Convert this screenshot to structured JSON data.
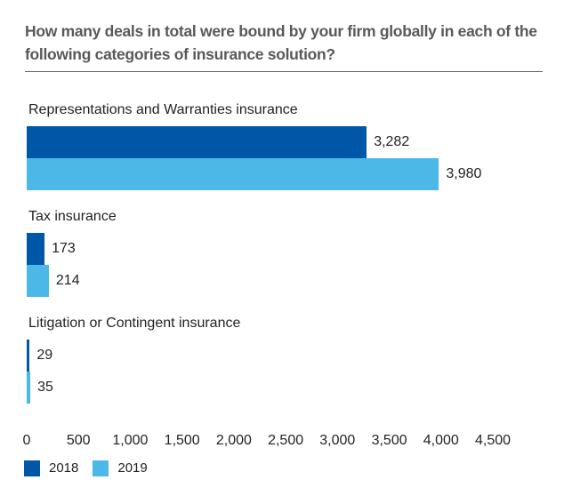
{
  "page": {
    "background": "#FFFFFF",
    "title_color": "#58595B",
    "divider_color": "#6D6E71",
    "text_color": "#231F20"
  },
  "chart_data": {
    "type": "bar",
    "orientation": "horizontal",
    "title": "How many deals in total were bound by your firm globally in each of the following categories of insurance solution?",
    "categories": [
      "Representations and Warranties insurance",
      "Tax insurance",
      "Litigation or Contingent insurance"
    ],
    "series": [
      {
        "name": "2018",
        "color": "#0057A8",
        "values": [
          3282,
          173,
          29
        ],
        "value_labels": [
          "3,282",
          "173",
          "29"
        ]
      },
      {
        "name": "2019",
        "color": "#4BB8E8",
        "values": [
          3980,
          214,
          35
        ],
        "value_labels": [
          "3,980",
          "214",
          "35"
        ]
      }
    ],
    "x_axis": {
      "min": 0,
      "max": 4500,
      "tick_step": 500,
      "ticks": [
        "0",
        "500",
        "1,000",
        "1,500",
        "2,000",
        "2,500",
        "3,000",
        "3,500",
        "4,000",
        "4,500"
      ]
    },
    "legend": {
      "position": "bottom-left",
      "entries": [
        "2018",
        "2019"
      ]
    },
    "grid": false,
    "data_labels": true
  }
}
